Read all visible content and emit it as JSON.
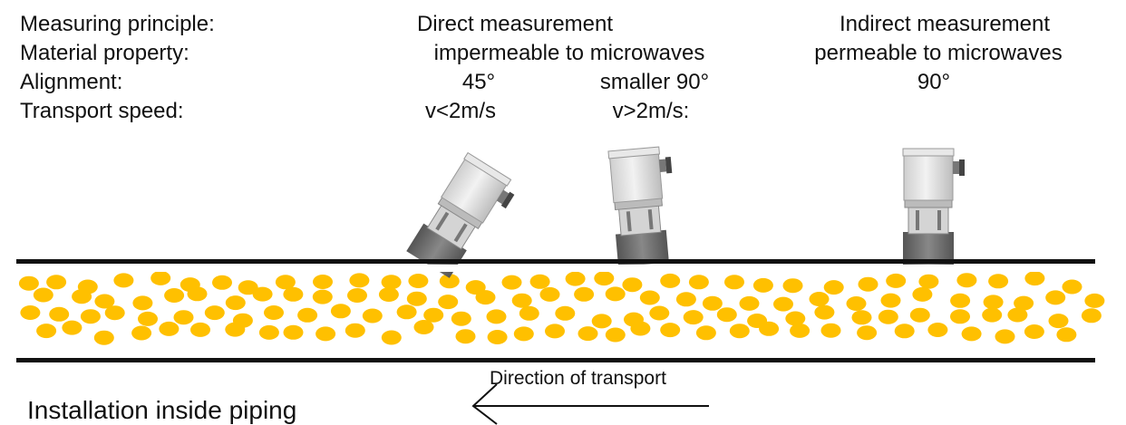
{
  "labels": [
    "Measuring principle:",
    "Material property:",
    "Alignment:",
    "Transport speed:"
  ],
  "direct": {
    "principle": "Direct measurement",
    "property": "impermeable to microwaves",
    "alignment": [
      "45°",
      "smaller 90°"
    ],
    "speed": [
      "v<2m/s",
      "v>2m/s:"
    ]
  },
  "indirect": {
    "principle": "Indirect measurement",
    "property": "permeable to microwaves",
    "alignment": "90°"
  },
  "arrow_label": "Direction of transport",
  "caption": "Installation inside piping"
}
